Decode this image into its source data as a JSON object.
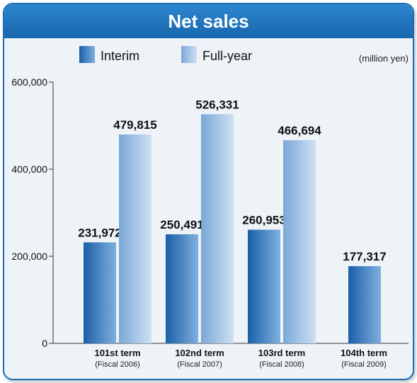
{
  "chart_data": {
    "type": "bar",
    "title": "Net sales",
    "unit": "(million yen)",
    "categories": [
      {
        "name": "101st term",
        "sub": "(Fiscal 2006)"
      },
      {
        "name": "102nd term",
        "sub": "(Fiscal 2007)"
      },
      {
        "name": "103rd term",
        "sub": "(Fiscal 2008)"
      },
      {
        "name": "104th term",
        "sub": "(Fiscal 2009)"
      }
    ],
    "series": [
      {
        "name": "Interim",
        "values": [
          231972,
          250491,
          260953,
          177317
        ],
        "labels": [
          "231,972",
          "250,491",
          "260,953",
          "177,317"
        ],
        "color_dark": "#1a5fa8",
        "color_light": "#7fb0de"
      },
      {
        "name": "Full-year",
        "values": [
          479815,
          526331,
          466694,
          null
        ],
        "labels": [
          "479,815",
          "526,331",
          "466,694",
          ""
        ],
        "color_dark": "#7aa8d8",
        "color_light": "#cfe0f2"
      }
    ],
    "ylim": [
      0,
      600000
    ],
    "yticks": [
      0,
      200000,
      400000,
      600000
    ],
    "ytick_labels": [
      "0",
      "200,000",
      "400,000",
      "600,000"
    ],
    "legend_position": "top",
    "grid": false
  }
}
